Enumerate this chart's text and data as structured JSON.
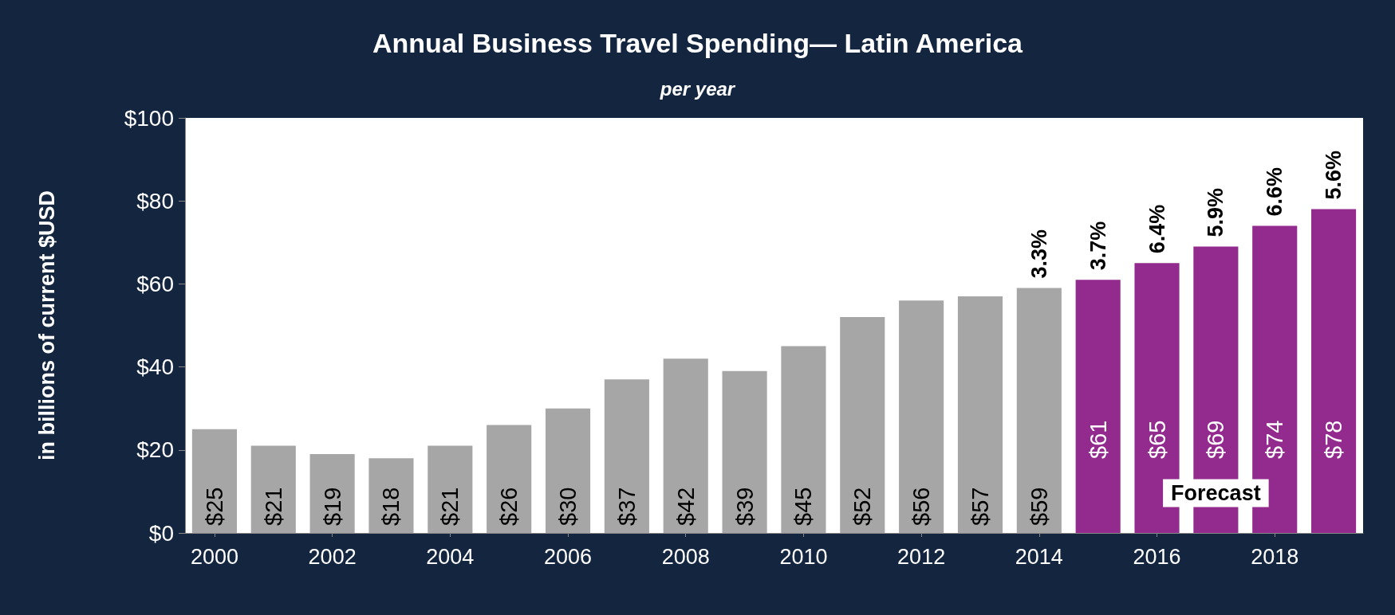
{
  "chart_data": {
    "type": "bar",
    "title": "Annual Business Travel Spending— Latin America",
    "subtitle": "per year",
    "ylabel": "in billions of current $USD",
    "x": [
      2000,
      2001,
      2002,
      2003,
      2004,
      2005,
      2006,
      2007,
      2008,
      2009,
      2010,
      2011,
      2012,
      2013,
      2014,
      2015,
      2016,
      2017,
      2018,
      2019
    ],
    "values": [
      25,
      21,
      19,
      18,
      21,
      26,
      30,
      37,
      42,
      39,
      45,
      52,
      56,
      57,
      59,
      61,
      65,
      69,
      74,
      78
    ],
    "value_labels": [
      "$25",
      "$21",
      "$19",
      "$18",
      "$21",
      "$26",
      "$30",
      "$37",
      "$42",
      "$39",
      "$45",
      "$52",
      "$56",
      "$57",
      "$59",
      "$61",
      "$65",
      "$69",
      "$74",
      "$78"
    ],
    "colors": [
      "#a6a6a6",
      "#a6a6a6",
      "#a6a6a6",
      "#a6a6a6",
      "#a6a6a6",
      "#a6a6a6",
      "#a6a6a6",
      "#a6a6a6",
      "#a6a6a6",
      "#a6a6a6",
      "#a6a6a6",
      "#a6a6a6",
      "#a6a6a6",
      "#a6a6a6",
      "#a6a6a6",
      "#922b8d",
      "#922b8d",
      "#922b8d",
      "#922b8d",
      "#922b8d"
    ],
    "xlim": [
      1999.5,
      2019.5
    ],
    "xticks": [
      2000,
      2002,
      2004,
      2006,
      2008,
      2010,
      2012,
      2014,
      2016,
      2018
    ],
    "ylim": [
      0,
      100
    ],
    "yticks": [
      {
        "value": 0,
        "label": "$0"
      },
      {
        "value": 20,
        "label": "$20"
      },
      {
        "value": 40,
        "label": "$40"
      },
      {
        "value": 60,
        "label": "$60"
      },
      {
        "value": 80,
        "label": "$80"
      },
      {
        "value": 100,
        "label": "$100"
      }
    ],
    "annotations": [
      {
        "text": "3.3%",
        "x": 2014,
        "y": 59
      },
      {
        "text": "3.7%",
        "x": 2015,
        "y": 61
      },
      {
        "text": "6.4%",
        "x": 2016,
        "y": 65
      },
      {
        "text": "5.9%",
        "x": 2017,
        "y": 69
      },
      {
        "text": "6.6%",
        "x": 2018,
        "y": 74
      },
      {
        "text": "5.6%",
        "x": 2019,
        "y": 78
      },
      "Forecast"
    ],
    "grid": false
  }
}
